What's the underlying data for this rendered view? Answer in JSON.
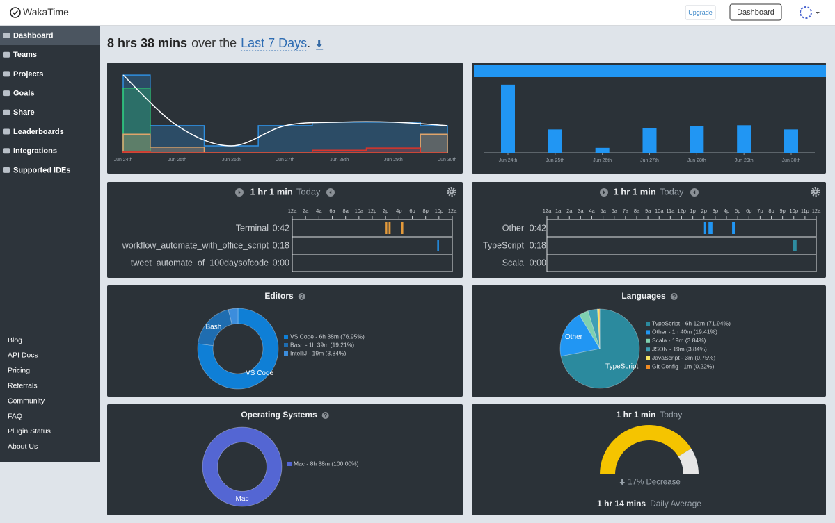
{
  "nav": {
    "brand": "WakaTime",
    "upgrade": "Upgrade",
    "dashboard": "Dashboard"
  },
  "sidebar": {
    "items": [
      "Dashboard",
      "Teams",
      "Projects",
      "Goals",
      "Share",
      "Leaderboards",
      "Integrations",
      "Supported IDEs"
    ],
    "active": 0,
    "links": [
      "Blog",
      "API Docs",
      "Pricing",
      "Referrals",
      "Community",
      "FAQ",
      "Plugin Status",
      "About Us"
    ]
  },
  "headline": {
    "total": "8 hrs 38 mins",
    "middle": "over the",
    "range": "Last 7 Days",
    "end": "."
  },
  "activity": {
    "type": "step-area",
    "categories": [
      "Jun 24th",
      "Jun 25th",
      "Jun 26th",
      "Jun 27th",
      "Jun 28th",
      "Jun 29th",
      "Jun 30th"
    ],
    "ylim": [
      0,
      185
    ],
    "series": [
      {
        "color": "#2f8fe0",
        "values": [
          180,
          63,
          16,
          63,
          71,
          71,
          63
        ]
      },
      {
        "color": "#2ecc71",
        "values": [
          150,
          0,
          0,
          0,
          0,
          0,
          0
        ]
      },
      {
        "color": "#e0a46a",
        "values": [
          43,
          13,
          0,
          0,
          0,
          0,
          43
        ]
      },
      {
        "color": "#d9342b",
        "values": [
          3,
          0,
          0,
          0,
          6,
          11,
          0
        ]
      }
    ],
    "trend_color": "#ffffff"
  },
  "daily": {
    "type": "bar",
    "categories": [
      "Jun 24th",
      "Jun 25th",
      "Jun 26th",
      "Jun 27th",
      "Jun 28th",
      "Jun 29th",
      "Jun 30th"
    ],
    "values": [
      178,
      61,
      13,
      64,
      70,
      72,
      61
    ],
    "color": "#2196f3",
    "ylim": [
      0,
      185
    ]
  },
  "timelines": [
    {
      "type": "timeline",
      "duration": "1 hr 1 min",
      "period": "Today",
      "xlim": [
        0,
        24
      ],
      "xticks": [
        {
          "value": 0,
          "label": "12a"
        },
        {
          "value": 2,
          "label": "2a"
        },
        {
          "value": 4,
          "label": "4a"
        },
        {
          "value": 6,
          "label": "6a"
        },
        {
          "value": 8,
          "label": "8a"
        },
        {
          "value": 10,
          "label": "10a"
        },
        {
          "value": 12,
          "label": "12p"
        },
        {
          "value": 14,
          "label": "2p"
        },
        {
          "value": 16,
          "label": "4p"
        },
        {
          "value": 18,
          "label": "6p"
        },
        {
          "value": 20,
          "label": "8p"
        },
        {
          "value": 22,
          "label": "10p"
        },
        {
          "value": 24,
          "label": "12a"
        }
      ],
      "rows": [
        {
          "name": "Terminal",
          "time": "0:42",
          "color": "#e39a3b",
          "segments": [
            [
              14.0,
              14.25
            ],
            [
              14.45,
              14.75
            ],
            [
              16.35,
              16.65
            ]
          ]
        },
        {
          "name": "workflow_automate_with_office_script",
          "time": "0:18",
          "color": "#2196f3",
          "segments": [
            [
              21.75,
              22.0
            ]
          ]
        },
        {
          "name": "tweet_automate_of_100daysofcode",
          "time": "0:00",
          "color": "#2196f3",
          "segments": []
        }
      ]
    },
    {
      "type": "timeline",
      "duration": "1 hr 1 min",
      "period": "Today",
      "xlim": [
        0,
        24
      ],
      "xticks": [
        {
          "value": 0,
          "label": "12a"
        },
        {
          "value": 1,
          "label": "1a"
        },
        {
          "value": 2,
          "label": "2a"
        },
        {
          "value": 3,
          "label": "3a"
        },
        {
          "value": 4,
          "label": "4a"
        },
        {
          "value": 5,
          "label": "5a"
        },
        {
          "value": 6,
          "label": "6a"
        },
        {
          "value": 7,
          "label": "7a"
        },
        {
          "value": 8,
          "label": "8a"
        },
        {
          "value": 9,
          "label": "9a"
        },
        {
          "value": 10,
          "label": "10a"
        },
        {
          "value": 11,
          "label": "11a"
        },
        {
          "value": 12,
          "label": "12p"
        },
        {
          "value": 13,
          "label": "1p"
        },
        {
          "value": 14,
          "label": "2p"
        },
        {
          "value": 15,
          "label": "3p"
        },
        {
          "value": 16,
          "label": "4p"
        },
        {
          "value": 17,
          "label": "5p"
        },
        {
          "value": 18,
          "label": "6p"
        },
        {
          "value": 19,
          "label": "7p"
        },
        {
          "value": 20,
          "label": "8p"
        },
        {
          "value": 21,
          "label": "9p"
        },
        {
          "value": 22,
          "label": "10p"
        },
        {
          "value": 23,
          "label": "11p"
        },
        {
          "value": 24,
          "label": "12a"
        }
      ],
      "rows": [
        {
          "name": "Other",
          "time": "0:42",
          "color": "#2196f3",
          "segments": [
            [
              14.0,
              14.2
            ],
            [
              14.4,
              14.75
            ],
            [
              16.5,
              16.8
            ]
          ]
        },
        {
          "name": "TypeScript",
          "time": "0:18",
          "color": "#2e8ca0",
          "segments": [
            [
              21.9,
              22.25
            ]
          ]
        },
        {
          "name": "Scala",
          "time": "0:00",
          "color": "#7fd1b0",
          "segments": []
        }
      ]
    }
  ],
  "editors": {
    "type": "donut",
    "title": "Editors",
    "labels": [
      "VS Code",
      "Bash",
      "IntelliJ"
    ],
    "values": [
      76.95,
      19.21,
      3.84
    ],
    "colors": [
      "#0f7fd6",
      "#1f6db0",
      "#3c8ddc"
    ],
    "legend": [
      "VS Code - 6h 38m (76.95%)",
      "Bash - 1h 39m (19.21%)",
      "IntelliJ - 19m (3.84%)"
    ]
  },
  "languages": {
    "type": "pie",
    "title": "Languages",
    "labels": [
      "TypeScript",
      "Other",
      "Scala",
      "JSON",
      "JavaScript",
      "Git Config"
    ],
    "values": [
      71.94,
      19.41,
      3.84,
      3.84,
      0.75,
      0.22
    ],
    "colors": [
      "#2b8a9e",
      "#2196f3",
      "#7fd1b0",
      "#3f9fb5",
      "#f7e463",
      "#f08a24"
    ],
    "legend": [
      "TypeScript - 6h 12m (71.94%)",
      "Other - 1h 40m (19.41%)",
      "Scala - 19m (3.84%)",
      "JSON - 19m (3.84%)",
      "JavaScript - 3m (0.75%)",
      "Git Config - 1m (0.22%)"
    ]
  },
  "os": {
    "type": "donut",
    "title": "Operating Systems",
    "labels": [
      "Mac"
    ],
    "values": [
      100
    ],
    "colors": [
      "#5466d3"
    ],
    "legend": [
      "Mac - 8h 38m (100.00%)"
    ]
  },
  "gauge": {
    "type": "gauge",
    "duration": "1 hr 1 min",
    "period": "Today",
    "value": 61,
    "max": 74,
    "color": "#f5c400",
    "rest_color": "#e6e6e6",
    "change": "17% Decrease",
    "average": "1 hr 14 mins",
    "average_label": "Daily Average"
  }
}
